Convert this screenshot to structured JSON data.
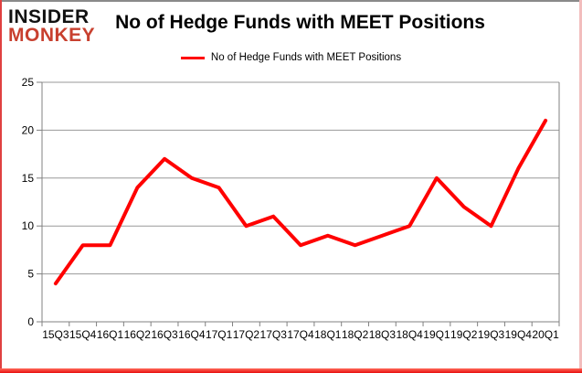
{
  "logo": {
    "line1": "INSIDER",
    "line2": "MONKEY"
  },
  "header": {
    "title": "No of Hedge Funds with MEET Positions"
  },
  "legend": {
    "label": "No of Hedge Funds with MEET Positions",
    "swatch_color": "#ff0000"
  },
  "chart_data": {
    "type": "line",
    "title": "No of Hedge Funds with MEET Positions",
    "categories": [
      "15Q3",
      "15Q4",
      "16Q1",
      "16Q2",
      "16Q3",
      "16Q4",
      "17Q1",
      "17Q2",
      "17Q3",
      "17Q4",
      "18Q1",
      "18Q2",
      "18Q3",
      "18Q4",
      "19Q1",
      "19Q2",
      "19Q3",
      "19Q4",
      "20Q1"
    ],
    "series": [
      {
        "name": "No of Hedge Funds with MEET Positions",
        "color": "#ff0000",
        "values": [
          4,
          8,
          8,
          14,
          17,
          15,
          14,
          10,
          11,
          8,
          9,
          8,
          9,
          10,
          15,
          12,
          10,
          16,
          21
        ]
      }
    ],
    "xlabel": "",
    "ylabel": "",
    "ylim": [
      0,
      25
    ],
    "yticks": [
      0,
      5,
      10,
      15,
      20,
      25
    ],
    "grid": true,
    "legend_position": "top-center"
  },
  "colors": {
    "line": "#ff0000",
    "gridline": "#999999",
    "axis": "#808080",
    "text": "#000000",
    "logo_black": "#111111",
    "logo_red": "#c8402f",
    "border_bottom": "#e80f0f",
    "border_pink": "#f2bdbd"
  }
}
